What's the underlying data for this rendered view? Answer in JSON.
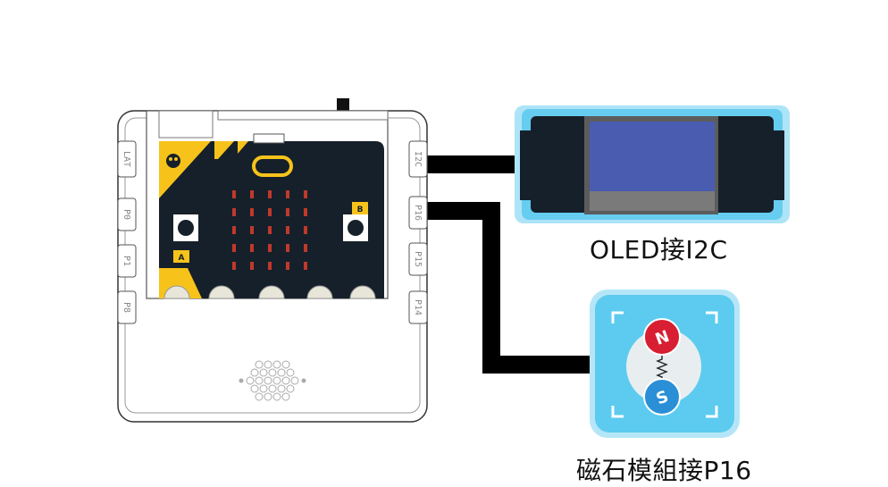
{
  "board": {
    "left_ports": [
      "LAT",
      "P0",
      "P1",
      "P8"
    ],
    "right_ports": [
      "I2C",
      "P16",
      "P15",
      "P14"
    ],
    "button_a": "A",
    "button_b": "B"
  },
  "oled": {
    "caption": "OLED接I2C",
    "screen_color": "#4a5cb0"
  },
  "magnet": {
    "caption": "磁石模組接P16",
    "north": "N",
    "south": "S",
    "north_color": "#d81e32",
    "south_color": "#2a8fd6"
  },
  "colors": {
    "pcb": "#16202a",
    "yellow": "#f7c31b",
    "module_blue": "#5ccbef",
    "led_red": "#c0392b"
  }
}
